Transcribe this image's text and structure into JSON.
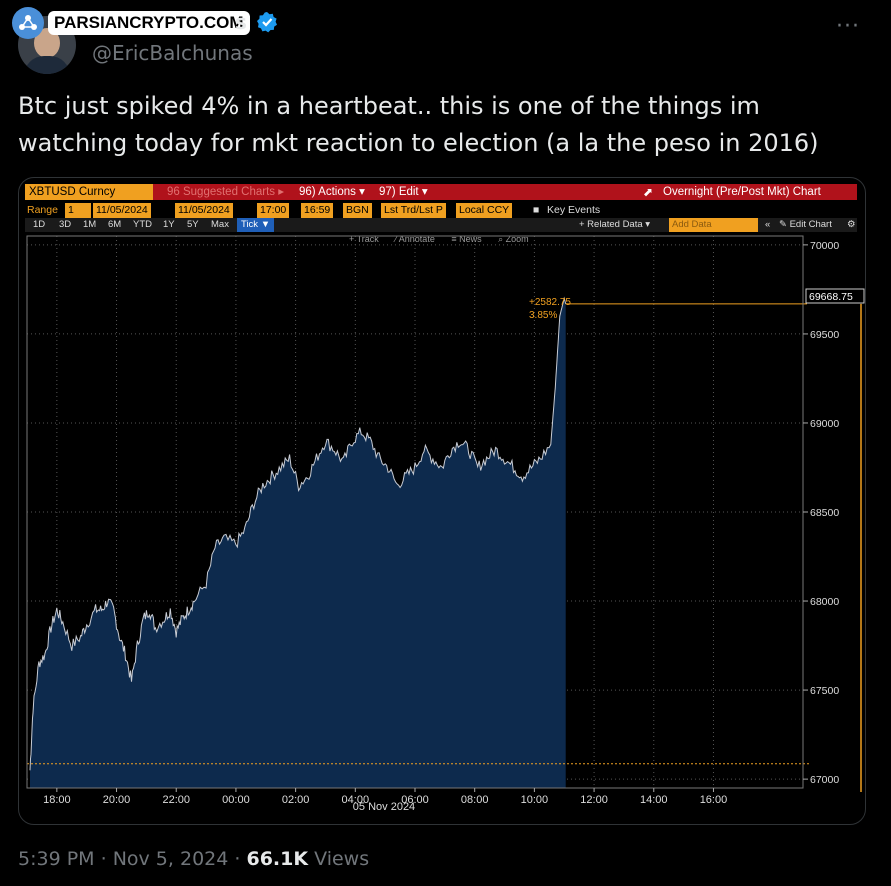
{
  "watermark": {
    "text": "PARSIANCRYPTO.COM"
  },
  "author": {
    "name_tail": "s",
    "handle": "@EricBalchunas"
  },
  "menu": {
    "more_label": "···"
  },
  "tweet": {
    "text": "Btc just spiked 4% in a heartbeat.. this is one of the things im watching today for mkt reaction to election (a la the peso in 2016)"
  },
  "terminal": {
    "ticker": "XBTUSD Curncy",
    "suggested": "96 Suggested Charts ▸",
    "actions": "96) Actions ▾",
    "edit": "97) Edit ▾",
    "overnight": "Overnight (Pre/Post Mkt) Chart",
    "range_label": "Range",
    "range_fields": [
      "1",
      "11/05/2024",
      "11/05/2024",
      "17:00",
      "16:59",
      "BGN",
      "Lst Trd/Lst P",
      "Local CCY"
    ],
    "key_events": "Key Events",
    "periods": [
      "1D",
      "3D",
      "1M",
      "6M",
      "YTD",
      "1Y",
      "5Y",
      "Max"
    ],
    "tick": "Tick ▼",
    "related": "+ Related Data ▾",
    "add_data": "Add Data",
    "edit_chart": "✎ Edit Chart",
    "tools": [
      "+ Track",
      "⁄ Annotate",
      "≡ News",
      "⌕ Zoom"
    ],
    "date_label": "05 Nov 2024",
    "last_price": "69668.75",
    "change_abs": "+2582.75",
    "change_pct": "3.85%"
  },
  "chart_data": {
    "type": "area",
    "title": "",
    "xlabel": "05 Nov 2024",
    "ylabel": "",
    "x_ticks": [
      "18:00",
      "20:00",
      "22:00",
      "00:00",
      "02:00",
      "04:00",
      "06:00",
      "08:00",
      "10:00",
      "12:00",
      "14:00",
      "16:00"
    ],
    "y_ticks": [
      67000,
      67500,
      68000,
      68500,
      69000,
      69500,
      70000
    ],
    "ylim": [
      66950,
      70050
    ],
    "reference_line": 67086,
    "series": [
      {
        "values": [
          [
            17.1,
            67050
          ],
          [
            17.2,
            67400
          ],
          [
            17.4,
            67650
          ],
          [
            17.6,
            67700
          ],
          [
            17.8,
            67850
          ],
          [
            18.0,
            67950
          ],
          [
            18.2,
            67880
          ],
          [
            18.5,
            67750
          ],
          [
            18.8,
            67800
          ],
          [
            19.0,
            67870
          ],
          [
            19.3,
            67950
          ],
          [
            19.5,
            67950
          ],
          [
            19.7,
            68000
          ],
          [
            19.9,
            67950
          ],
          [
            20.1,
            67800
          ],
          [
            20.3,
            67700
          ],
          [
            20.5,
            67550
          ],
          [
            20.7,
            67750
          ],
          [
            20.9,
            67900
          ],
          [
            21.1,
            67950
          ],
          [
            21.3,
            67850
          ],
          [
            21.6,
            67900
          ],
          [
            21.8,
            67950
          ],
          [
            22.0,
            67830
          ],
          [
            22.2,
            67900
          ],
          [
            22.4,
            67950
          ],
          [
            22.6,
            68000
          ],
          [
            23.0,
            68100
          ],
          [
            23.3,
            68300
          ],
          [
            23.6,
            68350
          ],
          [
            24.0,
            68320
          ],
          [
            24.3,
            68400
          ],
          [
            24.6,
            68550
          ],
          [
            24.9,
            68650
          ],
          [
            25.2,
            68700
          ],
          [
            25.5,
            68750
          ],
          [
            25.8,
            68800
          ],
          [
            26.1,
            68650
          ],
          [
            26.4,
            68700
          ],
          [
            26.7,
            68800
          ],
          [
            27.0,
            68900
          ],
          [
            27.3,
            68850
          ],
          [
            27.6,
            68780
          ],
          [
            27.9,
            68900
          ],
          [
            28.2,
            68950
          ],
          [
            28.5,
            68900
          ],
          [
            28.8,
            68800
          ],
          [
            29.1,
            68750
          ],
          [
            29.4,
            68650
          ],
          [
            29.7,
            68700
          ],
          [
            30.0,
            68750
          ],
          [
            30.3,
            68850
          ],
          [
            30.6,
            68800
          ],
          [
            30.9,
            68750
          ],
          [
            31.2,
            68850
          ],
          [
            31.5,
            68900
          ],
          [
            31.8,
            68850
          ],
          [
            32.1,
            68750
          ],
          [
            32.4,
            68800
          ],
          [
            32.7,
            68850
          ],
          [
            33.0,
            68800
          ],
          [
            33.3,
            68750
          ],
          [
            33.6,
            68700
          ],
          [
            33.9,
            68750
          ],
          [
            34.2,
            68800
          ],
          [
            34.55,
            68880
          ],
          [
            34.7,
            69200
          ],
          [
            34.85,
            69600
          ],
          [
            35.0,
            69700
          ],
          [
            35.05,
            69668.75
          ]
        ]
      }
    ],
    "last_value": 69668.75
  },
  "post_meta": {
    "time": "5:39 PM",
    "sep1": " · ",
    "date": "Nov 5, 2024",
    "sep2": " · ",
    "views": "66.1K",
    "views_label": " Views"
  },
  "colors": {
    "accent": "#f0a020",
    "area_fill": "#0d2a4d",
    "line": "#c8ccd4",
    "bar_red": "#b0121b"
  }
}
